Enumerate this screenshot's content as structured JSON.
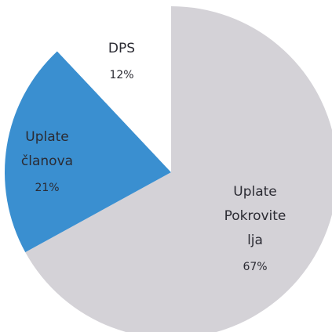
{
  "chart_data": {
    "type": "pie",
    "categories": [
      [
        "Uplate",
        "Pokrovite",
        "lja"
      ],
      [
        "Uplate",
        "članova"
      ],
      [
        "DPS"
      ]
    ],
    "values": [
      67,
      21,
      12
    ],
    "value_labels": [
      "67%",
      "21%",
      "12%"
    ],
    "colors": [
      "#d4d2d7",
      "#3a8fd0",
      "#ffffff"
    ]
  }
}
